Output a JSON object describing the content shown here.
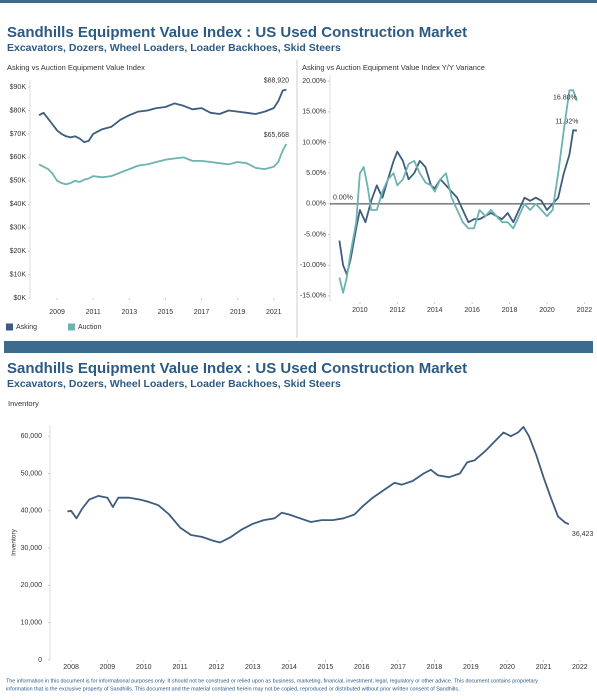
{
  "sections": [
    {
      "title": "Sandhills Equipment Value Index : US Used Construction Market",
      "subtitle": "Excavators, Dozers, Wheel Loaders, Loader Backhoes, Skid Steers"
    },
    {
      "title": "Sandhills Equipment Value Index : US Used Construction Market",
      "subtitle": "Excavators, Dozers, Wheel Loaders, Loader Backhoes, Skid Steers"
    }
  ],
  "footer": [
    "The information in this document is for informational purposes only.  It should not be construed or relied upon as business, marketing, financial, investment, legal, regulatory or other advice. This document contains proprietary",
    "information that is the exclusive property of Sandhills. This document and the material contained herein may not be copied, reproduced or distributed without prior written consent of Sandhills."
  ],
  "chart_data": [
    {
      "type": "line",
      "title": "Asking vs Auction Equipment Value Index",
      "xlim": [
        2007.5,
        2021.9
      ],
      "xticks": [
        2009,
        2011,
        2013,
        2015,
        2017,
        2019,
        2021
      ],
      "ylim": [
        0,
        93000
      ],
      "yticks": [
        {
          "value": 0,
          "label": "$0K"
        },
        {
          "value": 10000,
          "label": "$10K"
        },
        {
          "value": 20000,
          "label": "$20K"
        },
        {
          "value": 30000,
          "label": "$30K"
        },
        {
          "value": 40000,
          "label": "$40K"
        },
        {
          "value": 50000,
          "label": "$50K"
        },
        {
          "value": 60000,
          "label": "$60K"
        },
        {
          "value": 70000,
          "label": "$70K"
        },
        {
          "value": 80000,
          "label": "$80K"
        },
        {
          "value": 90000,
          "label": "$90K"
        }
      ],
      "grid": false,
      "legend": "bottom-left",
      "x": [
        2008.0,
        2008.25,
        2008.5,
        2008.75,
        2009.0,
        2009.25,
        2009.5,
        2009.75,
        2010.0,
        2010.25,
        2010.5,
        2010.75,
        2011.0,
        2011.5,
        2012.0,
        2012.5,
        2013.0,
        2013.5,
        2014.0,
        2014.5,
        2015.0,
        2015.5,
        2016.0,
        2016.5,
        2017.0,
        2017.5,
        2018.0,
        2018.5,
        2019.0,
        2019.5,
        2020.0,
        2020.5,
        2021.0,
        2021.25,
        2021.5,
        2021.7
      ],
      "series": [
        {
          "name": "Asking",
          "color": "#3e5c7e",
          "values": [
            78000,
            79000,
            76500,
            74000,
            71500,
            70000,
            69000,
            68500,
            69000,
            68000,
            66500,
            67000,
            70000,
            72000,
            73000,
            76000,
            78000,
            79500,
            80000,
            81000,
            81500,
            83000,
            82000,
            80500,
            81000,
            79000,
            78500,
            80000,
            79500,
            79000,
            78500,
            79500,
            81000,
            84000,
            88500,
            88920
          ],
          "value_labels": [
            null,
            null,
            null,
            null,
            null,
            null,
            null,
            null,
            null,
            null,
            null,
            null,
            null,
            null,
            null,
            null,
            null,
            null,
            null,
            null,
            null,
            null,
            null,
            null,
            null,
            null,
            null,
            null,
            null,
            null,
            null,
            null,
            null,
            null,
            null,
            "$88,920"
          ]
        },
        {
          "name": "Auction",
          "color": "#6db3b1",
          "values": [
            57000,
            56000,
            55000,
            53000,
            50000,
            49000,
            48500,
            49000,
            50000,
            49500,
            50500,
            51000,
            52000,
            51500,
            52000,
            53500,
            55000,
            56500,
            57000,
            58000,
            59000,
            59500,
            60000,
            58500,
            58500,
            58000,
            57500,
            57000,
            58000,
            57500,
            55500,
            55000,
            56000,
            58000,
            63000,
            65668
          ],
          "value_labels": [
            null,
            null,
            null,
            null,
            null,
            null,
            null,
            null,
            null,
            null,
            null,
            null,
            null,
            null,
            null,
            null,
            null,
            null,
            null,
            null,
            null,
            null,
            null,
            null,
            null,
            null,
            null,
            null,
            null,
            null,
            null,
            null,
            null,
            null,
            null,
            "$65,668"
          ]
        }
      ]
    },
    {
      "type": "line",
      "title": "Asking vs Auction Equipment Value Index Y/Y Variance",
      "xlim": [
        2008.4,
        2022.3
      ],
      "xticks": [
        2010,
        2012,
        2014,
        2016,
        2018,
        2020,
        2022
      ],
      "ylim": [
        -16,
        21
      ],
      "yticks": [
        {
          "value": -15,
          "label": "-15.00%"
        },
        {
          "value": -10,
          "label": "-10.00%"
        },
        {
          "value": -5,
          "label": "-5.00%"
        },
        {
          "value": 0,
          "label": "0.00%"
        },
        {
          "value": 5,
          "label": "5.00%"
        },
        {
          "value": 10,
          "label": "10.00%"
        },
        {
          "value": 15,
          "label": "15.00%"
        },
        {
          "value": 20,
          "label": "20.00%"
        }
      ],
      "grid": false,
      "reference_lines": [
        {
          "value": 0,
          "label": "0.00%",
          "color": "#333333"
        }
      ],
      "series": [
        {
          "color": "#3e5c7e",
          "x": [
            2008.9,
            2009.1,
            2009.3,
            2009.5,
            2009.8,
            2010.0,
            2010.3,
            2010.6,
            2010.9,
            2011.2,
            2011.5,
            2011.8,
            2012.0,
            2012.3,
            2012.6,
            2012.9,
            2013.2,
            2013.5,
            2013.8,
            2014.0,
            2014.3,
            2014.6,
            2014.9,
            2015.2,
            2015.5,
            2015.8,
            2016.1,
            2016.4,
            2016.7,
            2017.0,
            2017.3,
            2017.6,
            2017.9,
            2018.2,
            2018.5,
            2018.8,
            2019.1,
            2019.4,
            2019.7,
            2020.0,
            2020.3,
            2020.6,
            2020.9,
            2021.2,
            2021.4,
            2021.6
          ],
          "values": [
            -6,
            -10,
            -11.5,
            -9,
            -4,
            -1,
            -3,
            0.5,
            3,
            1,
            4,
            7,
            8.5,
            7,
            4,
            5,
            7,
            6,
            3,
            2.5,
            4,
            3,
            2,
            1,
            -1,
            -3,
            -2.5,
            -2.5,
            -2,
            -1.5,
            -2,
            -2.5,
            -1.5,
            -3,
            -1,
            1,
            0.5,
            1,
            0.5,
            -1,
            0,
            1,
            5,
            8,
            12,
            11.92
          ],
          "value_labels": [
            null,
            null,
            null,
            null,
            null,
            null,
            null,
            null,
            null,
            null,
            null,
            null,
            null,
            null,
            null,
            null,
            null,
            null,
            null,
            null,
            null,
            null,
            null,
            null,
            null,
            null,
            null,
            null,
            null,
            null,
            null,
            null,
            null,
            null,
            null,
            null,
            null,
            null,
            null,
            null,
            null,
            null,
            null,
            null,
            null,
            "11.92%"
          ]
        },
        {
          "color": "#6db3b1",
          "x": [
            2008.9,
            2009.1,
            2009.3,
            2009.5,
            2009.8,
            2010.0,
            2010.2,
            2010.4,
            2010.6,
            2010.9,
            2011.2,
            2011.5,
            2011.8,
            2012.0,
            2012.3,
            2012.6,
            2012.9,
            2013.2,
            2013.5,
            2013.8,
            2014.0,
            2014.3,
            2014.6,
            2014.9,
            2015.2,
            2015.5,
            2015.8,
            2016.1,
            2016.4,
            2016.7,
            2017.0,
            2017.3,
            2017.6,
            2017.9,
            2018.2,
            2018.5,
            2018.8,
            2019.1,
            2019.4,
            2019.7,
            2020.0,
            2020.3,
            2020.6,
            2020.9,
            2021.2,
            2021.4,
            2021.6
          ],
          "values": [
            -12,
            -14.5,
            -12,
            -8,
            -3,
            5,
            6,
            3,
            -1,
            -1,
            2,
            4,
            5,
            3,
            4,
            6.5,
            7,
            5,
            3.5,
            3,
            2,
            4,
            5,
            1,
            -1,
            -3,
            -4,
            -4,
            -1,
            -2,
            -1,
            -2,
            -3,
            -3,
            -4,
            -2,
            0,
            -1,
            0,
            -1,
            -2,
            -1,
            5,
            12,
            18.5,
            18.5,
            16.8
          ],
          "value_labels": [
            null,
            null,
            null,
            null,
            null,
            null,
            null,
            null,
            null,
            null,
            null,
            null,
            null,
            null,
            null,
            null,
            null,
            null,
            null,
            null,
            null,
            null,
            null,
            null,
            null,
            null,
            null,
            null,
            null,
            null,
            null,
            null,
            null,
            null,
            null,
            null,
            null,
            null,
            null,
            null,
            null,
            null,
            null,
            null,
            null,
            null,
            "16.80%"
          ]
        }
      ]
    },
    {
      "type": "line",
      "title": "Inventory",
      "y_label": "Inventory",
      "xlim": [
        2007.42,
        2022.28
      ],
      "xticks": [
        2008,
        2009,
        2010,
        2011,
        2012,
        2013,
        2014,
        2015,
        2016,
        2017,
        2018,
        2019,
        2020,
        2021,
        2022
      ],
      "ylim": [
        0,
        63000
      ],
      "yticks": [
        0,
        {
          "value": 10000,
          "label": "10,000"
        },
        {
          "value": 20000,
          "label": "20,000"
        },
        {
          "value": 30000,
          "label": "30,000"
        },
        {
          "value": 40000,
          "label": "40,000"
        },
        {
          "value": 50000,
          "label": "50,000"
        },
        {
          "value": 60000,
          "label": "60,000"
        }
      ],
      "grid": false,
      "series": [
        {
          "color": "#3e5c7e",
          "x": [
            2007.9,
            2008.0,
            2008.15,
            2008.3,
            2008.5,
            2008.75,
            2009.0,
            2009.15,
            2009.3,
            2009.6,
            2009.9,
            2010.1,
            2010.4,
            2010.7,
            2011.0,
            2011.3,
            2011.6,
            2011.9,
            2012.1,
            2012.4,
            2012.7,
            2013.0,
            2013.3,
            2013.6,
            2013.8,
            2014.0,
            2014.3,
            2014.6,
            2014.9,
            2015.2,
            2015.5,
            2015.8,
            2016.0,
            2016.3,
            2016.6,
            2016.9,
            2017.1,
            2017.4,
            2017.7,
            2017.9,
            2018.1,
            2018.4,
            2018.7,
            2018.9,
            2019.1,
            2019.4,
            2019.7,
            2019.9,
            2020.1,
            2020.3,
            2020.45,
            2020.6,
            2020.8,
            2021.0,
            2021.2,
            2021.4,
            2021.6,
            2021.7
          ],
          "values": [
            39800,
            40000,
            38000,
            40500,
            43000,
            44000,
            43500,
            41000,
            43500,
            43500,
            43000,
            42500,
            41500,
            39000,
            35500,
            33500,
            33000,
            32000,
            31500,
            33000,
            35000,
            36500,
            37500,
            38000,
            39500,
            39000,
            38000,
            37000,
            37500,
            37500,
            38000,
            39000,
            41000,
            43500,
            45500,
            47500,
            47000,
            48000,
            50000,
            51000,
            49500,
            49000,
            50000,
            53000,
            53500,
            56000,
            59000,
            61000,
            60000,
            61000,
            62500,
            60000,
            55000,
            49000,
            43500,
            38500,
            36800,
            36423
          ],
          "value_labels": [
            null,
            null,
            null,
            null,
            null,
            null,
            null,
            null,
            null,
            null,
            null,
            null,
            null,
            null,
            null,
            null,
            null,
            null,
            null,
            null,
            null,
            null,
            null,
            null,
            null,
            null,
            null,
            null,
            null,
            null,
            null,
            null,
            null,
            null,
            null,
            null,
            null,
            null,
            null,
            null,
            null,
            null,
            null,
            null,
            null,
            null,
            null,
            null,
            null,
            null,
            null,
            null,
            null,
            null,
            null,
            null,
            null,
            "36,423"
          ]
        }
      ]
    }
  ]
}
